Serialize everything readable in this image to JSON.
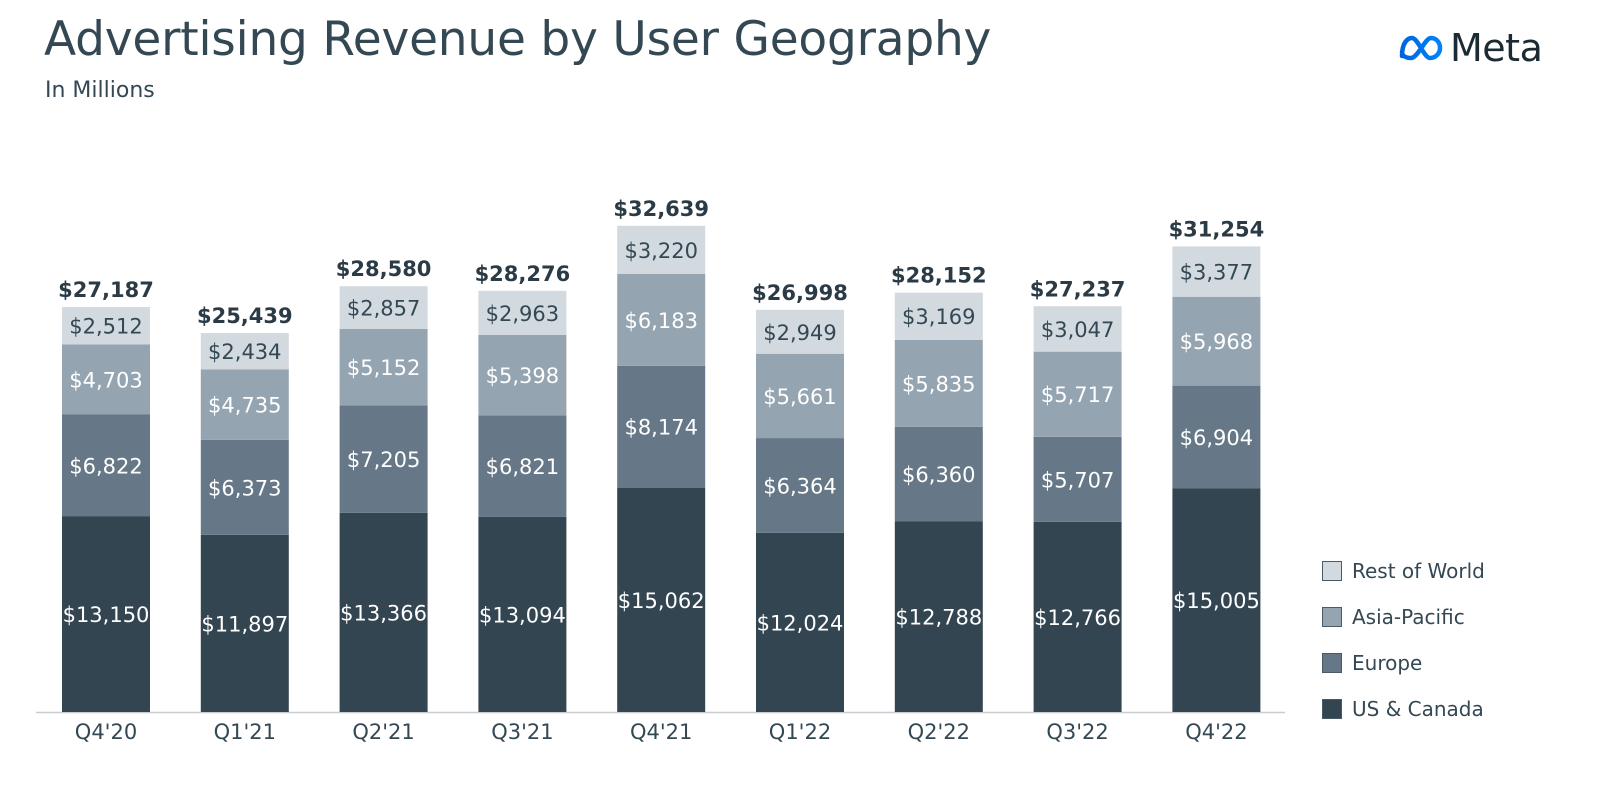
{
  "title": "Advertising Revenue by User Geography",
  "subtitle": "In Millions",
  "logo": {
    "icon": "meta-infinity-icon",
    "text": "Meta"
  },
  "colors": {
    "text": "#344854",
    "axis": "#c7cdd2",
    "Rest of World": "#d2d9df",
    "Asia-Pacific": "#95a4b1",
    "Europe": "#667887",
    "US & Canada": "#344552"
  },
  "chart_data": {
    "type": "bar",
    "stacked": true,
    "categories": [
      "Q4'20",
      "Q1'21",
      "Q2'21",
      "Q3'21",
      "Q4'21",
      "Q1'22",
      "Q2'22",
      "Q3'22",
      "Q4'22"
    ],
    "series": [
      {
        "name": "US & Canada",
        "values": [
          13150,
          11897,
          13366,
          13094,
          15062,
          12024,
          12788,
          12766,
          15005
        ],
        "labels": [
          "$13,150",
          "$11,897",
          "$13,366",
          "$13,094",
          "$15,062",
          "$12,024",
          "$12,788",
          "$12,766",
          "$15,005"
        ]
      },
      {
        "name": "Europe",
        "values": [
          6822,
          6373,
          7205,
          6821,
          8174,
          6364,
          6360,
          5707,
          6904
        ],
        "labels": [
          "$6,822",
          "$6,373",
          "$7,205",
          "$6,821",
          "$8,174",
          "$6,364",
          "$6,360",
          "$5,707",
          "$6,904"
        ]
      },
      {
        "name": "Asia-Pacific",
        "values": [
          4703,
          4735,
          5152,
          5398,
          6183,
          5661,
          5835,
          5717,
          5968
        ],
        "labels": [
          "$4,703",
          "$4,735",
          "$5,152",
          "$5,398",
          "$6,183",
          "$5,661",
          "$5,835",
          "$5,717",
          "$5,968"
        ]
      },
      {
        "name": "Rest of World",
        "values": [
          2512,
          2434,
          2857,
          2963,
          3220,
          2949,
          3169,
          3047,
          3377
        ],
        "labels": [
          "$2,512",
          "$2,434",
          "$2,857",
          "$2,963",
          "$3,220",
          "$2,949",
          "$3,169",
          "$3,047",
          "$3,377"
        ]
      }
    ],
    "totals": [
      27187,
      25439,
      28580,
      28276,
      32639,
      26998,
      28152,
      27237,
      31254
    ],
    "total_labels": [
      "$27,187",
      "$25,439",
      "$28,580",
      "$28,276",
      "$32,639",
      "$26,998",
      "$28,152",
      "$27,237",
      "$31,254"
    ],
    "ylim": [
      0,
      36000
    ],
    "legend": [
      "Rest of World",
      "Asia-Pacific",
      "Europe",
      "US & Canada"
    ],
    "legend_position": "right",
    "grid": false
  }
}
